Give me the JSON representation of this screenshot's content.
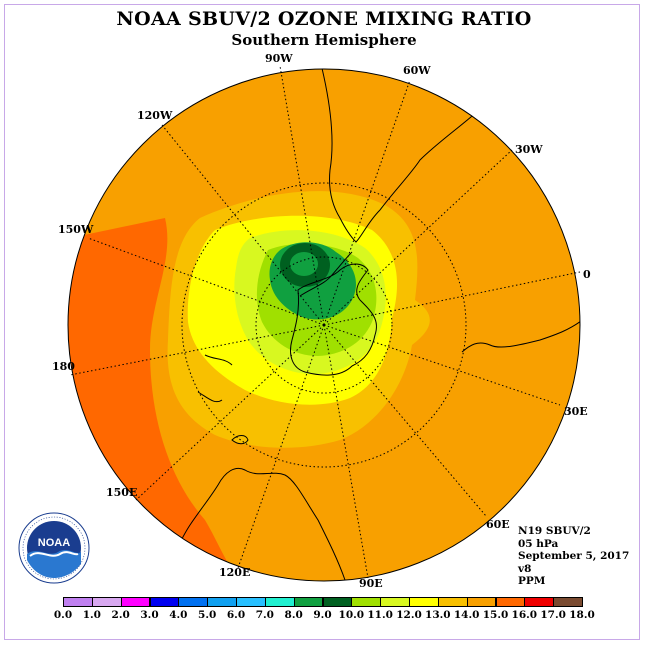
{
  "header": {
    "title": "NOAA SBUV/2 OZONE MIXING RATIO",
    "subtitle": "Southern Hemisphere"
  },
  "map": {
    "projection": "south-polar-stereographic",
    "longitude_labels": [
      "90W",
      "60W",
      "30W",
      "0",
      "30E",
      "60E",
      "90E",
      "120E",
      "150E",
      "180",
      "150W",
      "120W"
    ],
    "field_pattern": "low mixing ratio over Antarctica and the southern tip of South America; highest values over the South Pacific"
  },
  "info": {
    "instrument": "N19 SBUV/2",
    "pressure_level": "05 hPa",
    "date": "September 5, 2017",
    "version": "v8",
    "units": "PPM"
  },
  "legend": {
    "ticks": [
      "0.0",
      "1.0",
      "2.0",
      "3.0",
      "4.0",
      "5.0",
      "6.0",
      "7.0",
      "8.0",
      "9.0",
      "10.0",
      "11.0",
      "12.0",
      "13.0",
      "14.0",
      "15.0",
      "16.0",
      "17.0",
      "18.0"
    ],
    "colors": [
      "#c080f0",
      "#d8a8f0",
      "#ff00ff",
      "#0000f0",
      "#0070f0",
      "#10a0f0",
      "#28c0ff",
      "#20f0d0",
      "#10a040",
      "#006020",
      "#a0e000",
      "#d8f820",
      "#ffff00",
      "#f8c000",
      "#f8a000",
      "#ff6800",
      "#f00000",
      "#7a4a30"
    ]
  },
  "logo": {
    "acronym": "NOAA",
    "ring_text": "NATIONAL OCEANIC AND ATMOSPHERIC ADMINISTRATION · U.S. DEPARTMENT OF COMMERCE"
  }
}
